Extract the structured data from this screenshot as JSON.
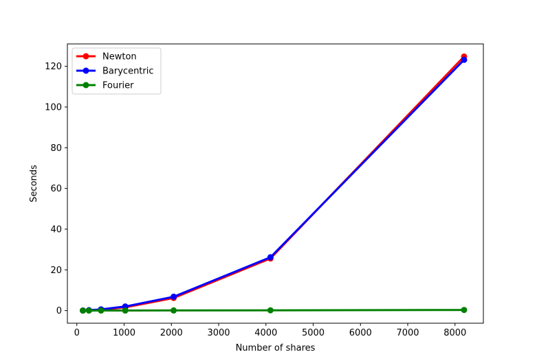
{
  "chart_data": {
    "type": "line",
    "title": "",
    "xlabel": "Number of shares",
    "ylabel": "Seconds",
    "xlim": [
      -200,
      8600
    ],
    "ylim": [
      -6.2,
      131
    ],
    "x_ticks": [
      0,
      1000,
      2000,
      3000,
      4000,
      5000,
      6000,
      7000,
      8000
    ],
    "y_ticks": [
      0,
      20,
      40,
      60,
      80,
      100,
      120
    ],
    "x_tick_labels": [
      "0",
      "1000",
      "2000",
      "3000",
      "4000",
      "5000",
      "6000",
      "7000",
      "8000"
    ],
    "y_tick_labels": [
      "0",
      "20",
      "40",
      "60",
      "80",
      "100",
      "120"
    ],
    "grid": false,
    "legend_position": "top-left",
    "series": [
      {
        "name": "Newton",
        "color": "#ff0000",
        "x": [
          128,
          256,
          512,
          1024,
          2048,
          4096,
          8192
        ],
        "y": [
          0.03,
          0.1,
          0.4,
          1.6,
          6.2,
          25.6,
          124.8
        ]
      },
      {
        "name": "Barycentric",
        "color": "#0000ff",
        "x": [
          128,
          256,
          512,
          1024,
          2048,
          4096,
          8192
        ],
        "y": [
          0.05,
          0.2,
          0.6,
          2.0,
          6.8,
          26.2,
          123.2
        ]
      },
      {
        "name": "Fourier",
        "color": "#008000",
        "x": [
          128,
          256,
          512,
          1024,
          2048,
          4096,
          8192
        ],
        "y": [
          0.01,
          0.01,
          0.02,
          0.03,
          0.06,
          0.13,
          0.3
        ]
      }
    ]
  }
}
